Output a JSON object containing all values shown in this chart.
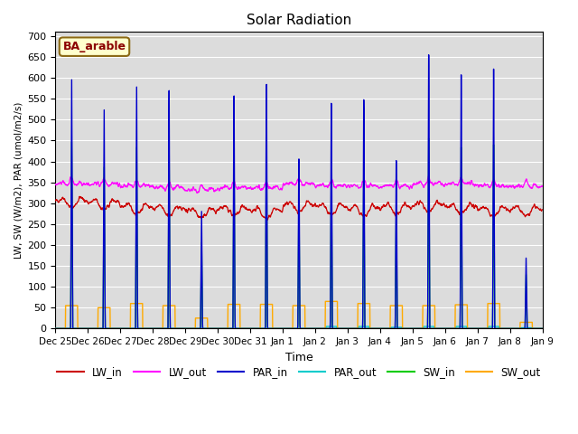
{
  "title": "Solar Radiation",
  "ylabel": "LW, SW (W/m2), PAR (umol/m2/s)",
  "xlabel": "Time",
  "site_label": "BA_arable",
  "ylim": [
    0,
    710
  ],
  "yticks": [
    0,
    50,
    100,
    150,
    200,
    250,
    300,
    350,
    400,
    450,
    500,
    550,
    600,
    650,
    700
  ],
  "bg_color": "#dcdcdc",
  "colors": {
    "LW_in": "#cc0000",
    "LW_out": "#ff00ff",
    "PAR_in": "#0000cc",
    "PAR_out": "#00cccc",
    "SW_in": "#00cc00",
    "SW_out": "#ffaa00"
  },
  "n_days": 15,
  "day_labels": [
    "Dec 25",
    "Dec 26",
    "Dec 27",
    "Dec 28",
    "Dec 29",
    "Dec 30",
    "Dec 31",
    "Jan 1",
    "Jan 2",
    "Jan 3",
    "Jan 4",
    "Jan 5",
    "Jan 6",
    "Jan 7",
    "Jan 8",
    "Jan 9"
  ],
  "par_peaks": [
    600,
    535,
    600,
    600,
    300,
    605,
    645,
    455,
    595,
    595,
    430,
    690,
    630,
    635,
    170,
    0
  ],
  "sw_peaks": [
    450,
    395,
    450,
    450,
    220,
    450,
    460,
    320,
    415,
    415,
    300,
    480,
    450,
    450,
    130,
    0
  ],
  "sw_out_flat": [
    55,
    50,
    60,
    55,
    25,
    58,
    58,
    55,
    65,
    60,
    55,
    55,
    57,
    60,
    15,
    0
  ],
  "lw_in_base": [
    315,
    310,
    300,
    295,
    290,
    295,
    290,
    305,
    300,
    295,
    300,
    305,
    300,
    295,
    295,
    300
  ],
  "lw_out_base": [
    350,
    350,
    345,
    340,
    335,
    340,
    340,
    350,
    345,
    345,
    345,
    350,
    350,
    345,
    345,
    350
  ]
}
